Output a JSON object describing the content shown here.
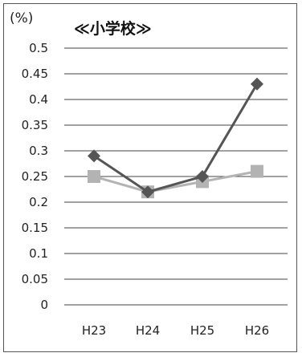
{
  "chart_data": {
    "type": "line",
    "unit_label": "(%)",
    "title": "≪小学校≫",
    "categories": [
      "H23",
      "H24",
      "H25",
      "H26"
    ],
    "y_ticks": [
      "0",
      "0.05",
      "0.1",
      "0.15",
      "0.2",
      "0.25",
      "0.3",
      "0.35",
      "0.4",
      "0.45",
      "0.5"
    ],
    "ylim": [
      0,
      0.5
    ],
    "grid": true,
    "series": [
      {
        "values": [
          0.29,
          0.22,
          0.25,
          0.43
        ],
        "color": "#555555",
        "marker": "diamond"
      },
      {
        "values": [
          0.25,
          0.22,
          0.24,
          0.26
        ],
        "color": "#b3b3b3",
        "marker": "square"
      }
    ]
  }
}
